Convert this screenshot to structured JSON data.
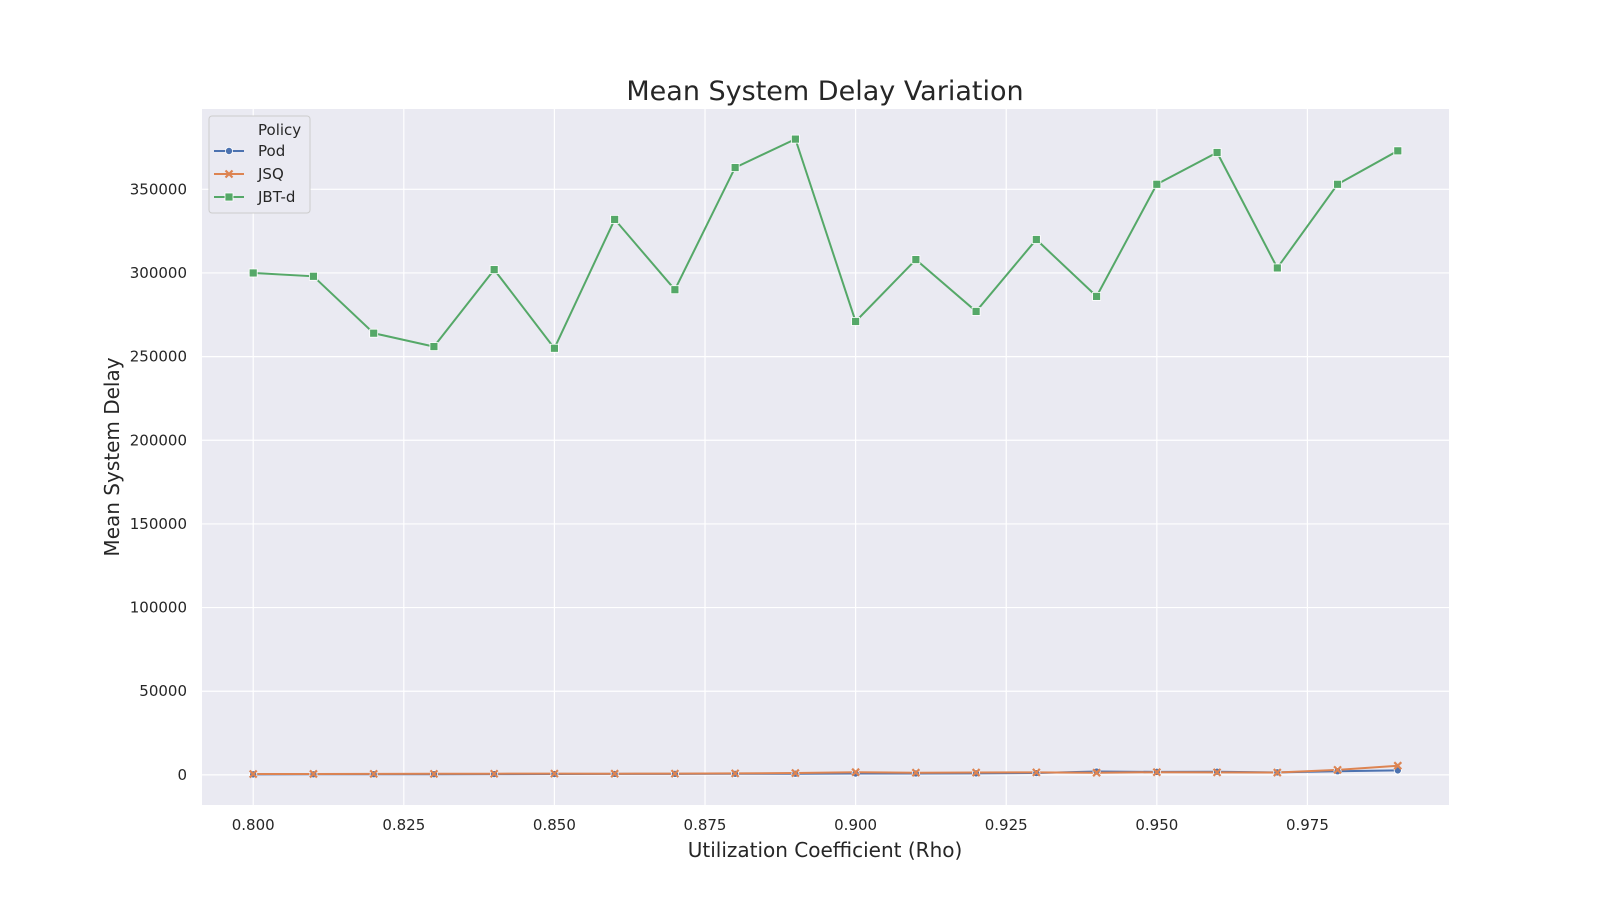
{
  "chart_data": {
    "type": "line",
    "title": "Mean System Delay Variation",
    "xlabel": "Utilization Coefficient (Rho)",
    "ylabel": "Mean System Delay",
    "xlim": [
      0.7915,
      0.9985
    ],
    "ylim": [
      -18000,
      398000
    ],
    "x_ticks": [
      0.8,
      0.825,
      0.85,
      0.875,
      0.9,
      0.925,
      0.95,
      0.975
    ],
    "x_tick_labels": [
      "0.800",
      "0.825",
      "0.850",
      "0.875",
      "0.900",
      "0.925",
      "0.950",
      "0.975"
    ],
    "y_ticks": [
      0,
      50000,
      100000,
      150000,
      200000,
      250000,
      300000,
      350000
    ],
    "y_tick_labels": [
      "0",
      "50000",
      "100000",
      "150000",
      "200000",
      "250000",
      "300000",
      "350000"
    ],
    "grid": true,
    "legend": {
      "title": "Policy",
      "placement": "top-left"
    },
    "x": [
      0.8,
      0.81,
      0.82,
      0.83,
      0.84,
      0.85,
      0.86,
      0.87,
      0.88,
      0.89,
      0.9,
      0.91,
      0.92,
      0.93,
      0.94,
      0.95,
      0.96,
      0.97,
      0.98,
      0.99
    ],
    "series": [
      {
        "name": "Pod",
        "color": "#4c72b0",
        "marker": "circle",
        "values": [
          300,
          350,
          400,
          420,
          480,
          520,
          560,
          600,
          650,
          700,
          800,
          850,
          900,
          1100,
          2000,
          1800,
          1900,
          1500,
          2200,
          2700
        ]
      },
      {
        "name": "JSQ",
        "color": "#dd8452",
        "marker": "x",
        "values": [
          500,
          550,
          600,
          620,
          680,
          750,
          700,
          760,
          900,
          1100,
          1600,
          1300,
          1400,
          1500,
          1300,
          1600,
          1500,
          1400,
          3000,
          5500
        ]
      },
      {
        "name": "JBT-d",
        "color": "#55a868",
        "marker": "square",
        "values": [
          300000,
          298000,
          264000,
          256000,
          302000,
          255000,
          332000,
          290000,
          363000,
          380000,
          271000,
          308000,
          277000,
          320000,
          286000,
          353000,
          372000,
          303000,
          353000,
          373000
        ]
      }
    ]
  }
}
